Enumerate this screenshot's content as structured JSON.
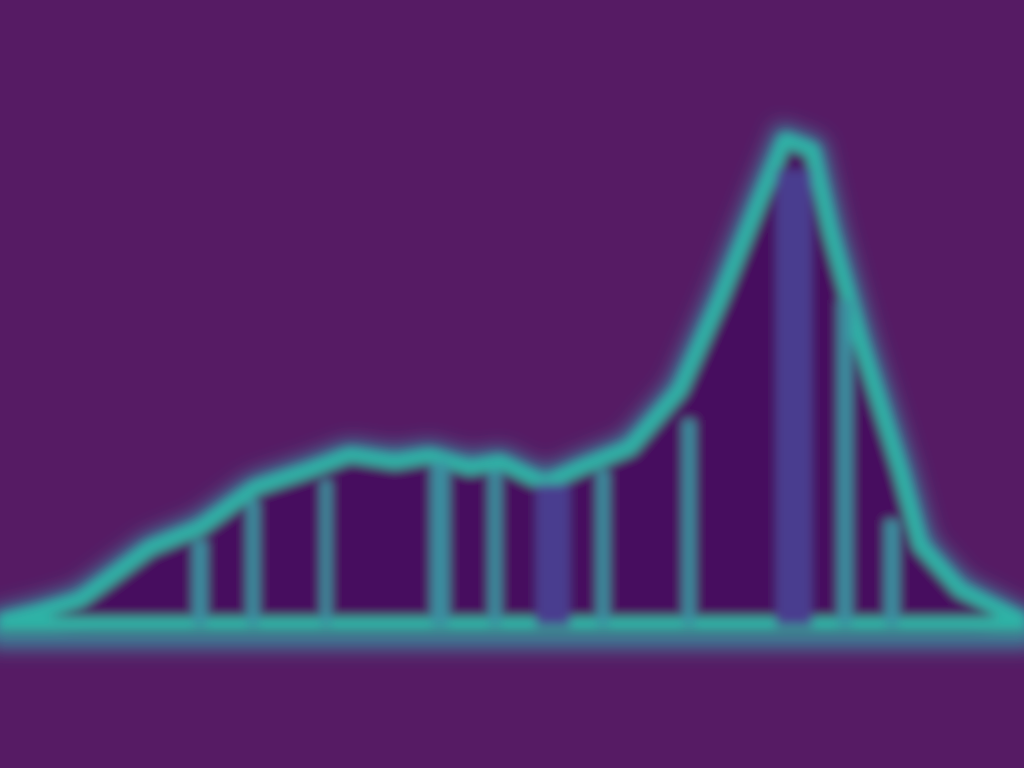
{
  "colors": {
    "background": "#561b64",
    "fill": "#46085e",
    "outline": "#2fb2a6",
    "glow": "#3a8fa0",
    "column_haze": "#4a3e8f"
  },
  "image": {
    "subject": "silhouette-histogram",
    "style": "blurred"
  }
}
